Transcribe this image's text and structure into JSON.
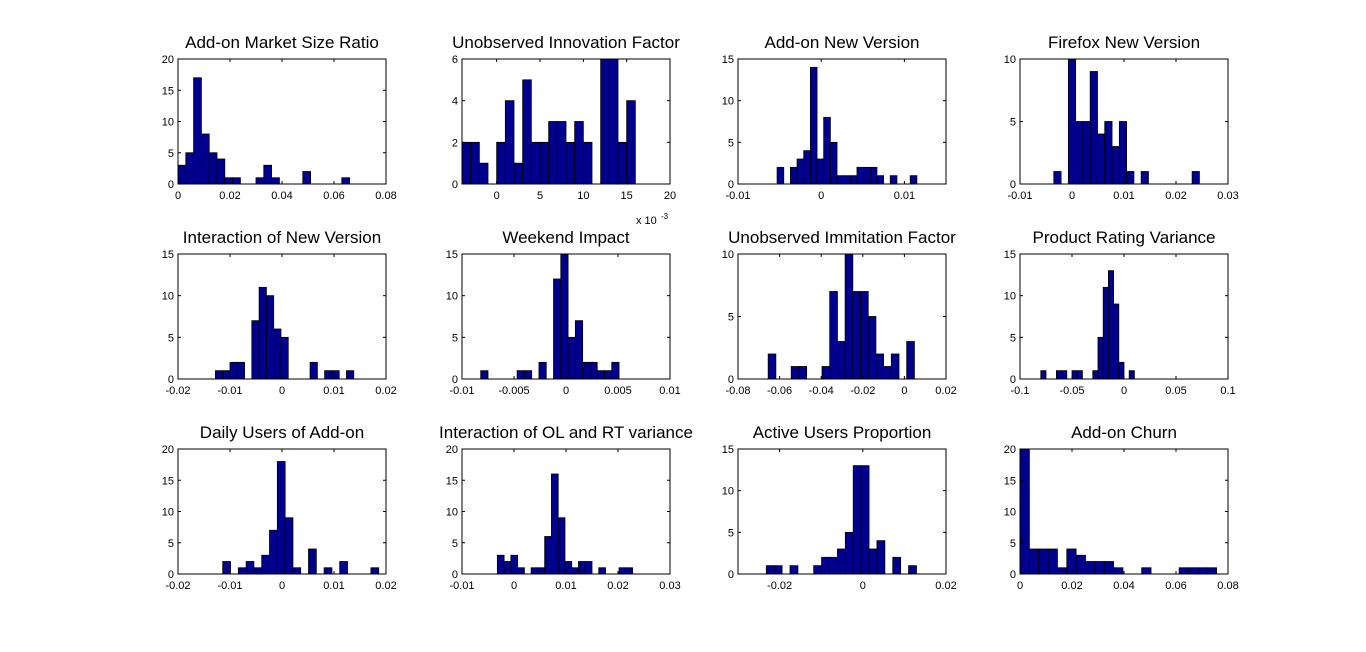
{
  "chart_data": [
    {
      "type": "bar",
      "title": "Add-on Market Size Ratio",
      "xlim": [
        0,
        0.08
      ],
      "ylim": [
        0,
        20
      ],
      "xticks": [
        "0",
        "0.02",
        "0.04",
        "0.06",
        "0.08"
      ],
      "yticks": [
        "0",
        "5",
        "10",
        "15",
        "20"
      ],
      "bin_start": 0,
      "bin_width": 0.003,
      "values": [
        3,
        5,
        17,
        8,
        5,
        4,
        1,
        1,
        0,
        0,
        1,
        3,
        1,
        0,
        0,
        0,
        2,
        0,
        0,
        0,
        0,
        1
      ]
    },
    {
      "type": "bar",
      "title": "Unobserved Innovation Factor",
      "xlim": [
        -4,
        20
      ],
      "ylim": [
        0,
        6
      ],
      "x_multiplier": "x 10",
      "x_multiplier_exp": "-3",
      "xticks": [
        "0",
        "5",
        "10",
        "15",
        "20"
      ],
      "yticks": [
        "0",
        "2",
        "4",
        "6"
      ],
      "bin_start": -4,
      "bin_width": 1,
      "values": [
        2,
        2,
        1,
        0,
        2,
        4,
        1,
        5,
        2,
        2,
        3,
        3,
        2,
        3,
        2,
        0,
        6,
        6,
        2,
        4
      ]
    },
    {
      "type": "bar",
      "title": "Add-on New Version",
      "xlim": [
        -0.01,
        0.015
      ],
      "ylim": [
        0,
        15
      ],
      "xticks": [
        "-0.01",
        "0",
        "0.01"
      ],
      "yticks": [
        "0",
        "5",
        "10",
        "15"
      ],
      "bin_start": -0.0053,
      "bin_width": 0.0008,
      "values": [
        2,
        0,
        2,
        3,
        4,
        14,
        3,
        8,
        5,
        1,
        1,
        1,
        2,
        2,
        2,
        1,
        0,
        1,
        0,
        0,
        1
      ]
    },
    {
      "type": "bar",
      "title": "Firefox New Version",
      "xlim": [
        -0.01,
        0.03
      ],
      "ylim": [
        0,
        10
      ],
      "xticks": [
        "-0.01",
        "0",
        "0.01",
        "0.02",
        "0.03"
      ],
      "yticks": [
        "0",
        "5",
        "10"
      ],
      "bin_start": -0.0035,
      "bin_width": 0.0014,
      "values": [
        1,
        0,
        10,
        5,
        5,
        9,
        4,
        5,
        3,
        5,
        1,
        0,
        1,
        0,
        0,
        0,
        0,
        0,
        0,
        1
      ]
    },
    {
      "type": "bar",
      "title": "Interaction of New Version",
      "xlim": [
        -0.02,
        0.02
      ],
      "ylim": [
        0,
        15
      ],
      "xticks": [
        "-0.02",
        "-0.01",
        "0",
        "0.01",
        "0.02"
      ],
      "yticks": [
        "0",
        "5",
        "10",
        "15"
      ],
      "bin_start": -0.0128,
      "bin_width": 0.0014,
      "values": [
        1,
        1,
        2,
        2,
        0,
        7,
        11,
        10,
        6,
        5,
        0,
        0,
        0,
        2,
        0,
        1,
        1,
        0,
        1
      ]
    },
    {
      "type": "bar",
      "title": "Weekend Impact",
      "xlim": [
        -0.01,
        0.01
      ],
      "ylim": [
        0,
        15
      ],
      "xticks": [
        "-0.01",
        "-0.005",
        "0",
        "0.005",
        "0.01"
      ],
      "yticks": [
        "0",
        "5",
        "10",
        "15"
      ],
      "bin_start": -0.0082,
      "bin_width": 0.0007,
      "values": [
        1,
        0,
        0,
        0,
        0,
        1,
        1,
        0,
        2,
        0,
        12,
        15,
        5,
        7,
        2,
        2,
        1,
        1,
        2
      ]
    },
    {
      "type": "bar",
      "title": "Unobserved Immitation Factor",
      "xlim": [
        -0.08,
        0.02
      ],
      "ylim": [
        0,
        10
      ],
      "xticks": [
        "-0.08",
        "-0.06",
        "-0.04",
        "-0.02",
        "0",
        "0.02"
      ],
      "yticks": [
        "0",
        "5",
        "10"
      ],
      "bin_start": -0.0655,
      "bin_width": 0.0037,
      "values": [
        2,
        0,
        0,
        1,
        1,
        0,
        0,
        1,
        7,
        3,
        10,
        7,
        7,
        5,
        2,
        1,
        2,
        0,
        3
      ]
    },
    {
      "type": "bar",
      "title": "Product Rating Variance",
      "xlim": [
        -0.1,
        0.1
      ],
      "ylim": [
        0,
        15
      ],
      "xticks": [
        "-0.1",
        "-0.05",
        "0",
        "0.05",
        "0.1"
      ],
      "yticks": [
        "0",
        "5",
        "10",
        "15"
      ],
      "bin_start": -0.08,
      "bin_width": 0.005,
      "values": [
        1,
        0,
        0,
        1,
        1,
        0,
        1,
        1,
        0,
        0,
        1,
        5,
        11,
        13,
        9,
        2,
        0,
        1
      ]
    },
    {
      "type": "bar",
      "title": "Daily Users of Add-on",
      "xlim": [
        -0.02,
        0.02
      ],
      "ylim": [
        0,
        20
      ],
      "xticks": [
        "-0.02",
        "-0.01",
        "0",
        "0.01",
        "0.02"
      ],
      "yticks": [
        "0",
        "5",
        "10",
        "15",
        "20"
      ],
      "bin_start": -0.0114,
      "bin_width": 0.0015,
      "values": [
        2,
        0,
        1,
        2,
        1,
        3,
        7,
        18,
        9,
        1,
        0,
        4,
        0,
        1,
        0,
        2,
        0,
        0,
        0,
        1
      ]
    },
    {
      "type": "bar",
      "title": "Interaction of OL and RT variance",
      "xlim": [
        -0.01,
        0.03
      ],
      "ylim": [
        0,
        20
      ],
      "xticks": [
        "-0.01",
        "0",
        "0.01",
        "0.02",
        "0.03"
      ],
      "yticks": [
        "0",
        "5",
        "10",
        "15",
        "20"
      ],
      "bin_start": -0.0032,
      "bin_width": 0.0013,
      "values": [
        3,
        2,
        3,
        1,
        0,
        1,
        1,
        6,
        16,
        9,
        2,
        1,
        2,
        2,
        0,
        1,
        0,
        0,
        1,
        1
      ]
    },
    {
      "type": "bar",
      "title": "Active Users Proportion",
      "xlim": [
        -0.03,
        0.02
      ],
      "ylim": [
        0,
        15
      ],
      "xticks": [
        "-0.02",
        "0",
        "0.02"
      ],
      "yticks": [
        "0",
        "5",
        "10",
        "15"
      ],
      "bin_start": -0.0232,
      "bin_width": 0.0019,
      "values": [
        1,
        1,
        0,
        1,
        0,
        0,
        1,
        2,
        2,
        3,
        5,
        13,
        13,
        3,
        4,
        0,
        2,
        0,
        1
      ]
    },
    {
      "type": "bar",
      "title": "Add-on Churn",
      "xlim": [
        0,
        0.08
      ],
      "ylim": [
        0,
        20
      ],
      "xticks": [
        "0",
        "0.02",
        "0.04",
        "0.06",
        "0.08"
      ],
      "yticks": [
        "0",
        "5",
        "10",
        "15",
        "20"
      ],
      "bin_start": 0,
      "bin_width": 0.0036,
      "values": [
        20,
        4,
        4,
        4,
        1,
        4,
        3,
        2,
        2,
        2,
        1,
        0,
        0,
        1,
        0,
        0,
        0,
        1,
        1,
        1,
        1
      ]
    }
  ],
  "colors": {
    "bar_fill": "#00008f",
    "bar_edge": "#000000",
    "axes": "#000000"
  }
}
